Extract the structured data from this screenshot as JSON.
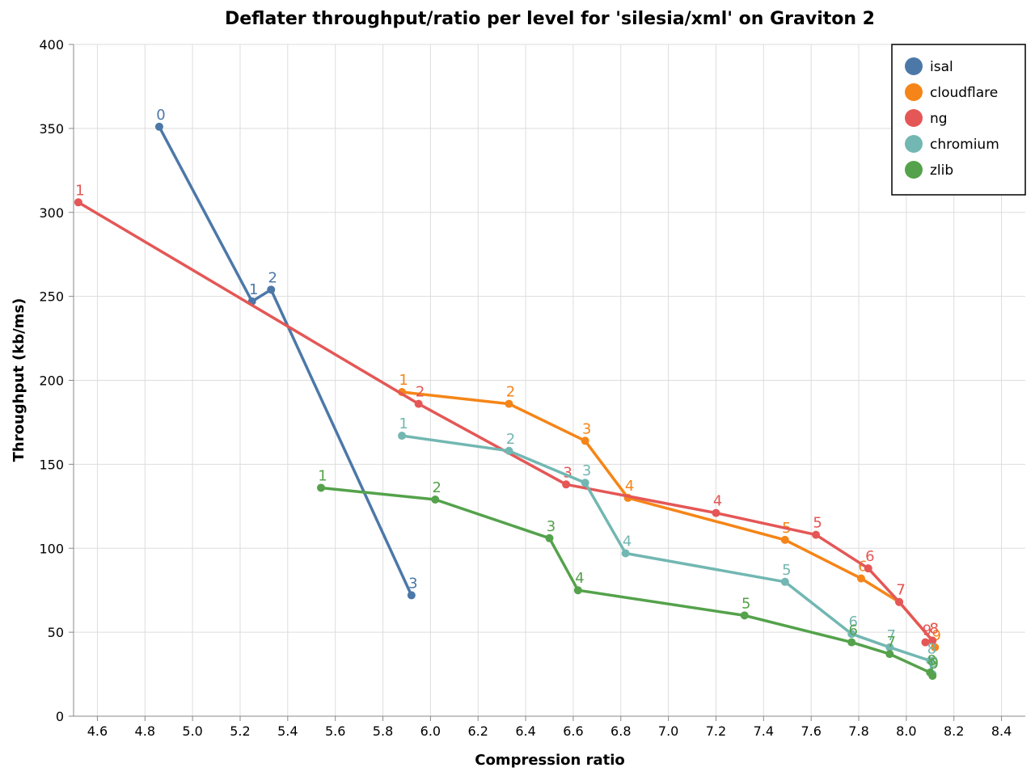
{
  "chart_data": {
    "type": "line",
    "title": "Deflater throughput/ratio per level for 'silesia/xml' on Graviton 2",
    "xlabel": "Compression ratio",
    "ylabel": "Throughput (kb/ms)",
    "xlim": [
      4.5,
      8.5
    ],
    "ylim": [
      0,
      400
    ],
    "x_ticks": [
      "4.6",
      "4.8",
      "5.0",
      "5.2",
      "5.4",
      "5.6",
      "5.8",
      "6.0",
      "6.2",
      "6.4",
      "6.6",
      "6.8",
      "7.0",
      "7.2",
      "7.4",
      "7.6",
      "7.8",
      "8.0",
      "8.2",
      "8.4"
    ],
    "y_ticks": [
      "0",
      "50",
      "100",
      "150",
      "200",
      "250",
      "300",
      "350",
      "400"
    ],
    "grid": true,
    "legend_position": "top-right",
    "series": [
      {
        "name": "isal",
        "color": "#4c78a8",
        "points": [
          {
            "level": "0",
            "x": 4.86,
            "y": 351
          },
          {
            "level": "1",
            "x": 5.25,
            "y": 247
          },
          {
            "level": "2",
            "x": 5.33,
            "y": 254
          },
          {
            "level": "3",
            "x": 5.92,
            "y": 72
          }
        ]
      },
      {
        "name": "cloudflare",
        "color": "#f58518",
        "points": [
          {
            "level": "1",
            "x": 5.88,
            "y": 193
          },
          {
            "level": "2",
            "x": 6.33,
            "y": 186
          },
          {
            "level": "3",
            "x": 6.65,
            "y": 164
          },
          {
            "level": "4",
            "x": 6.83,
            "y": 130
          },
          {
            "level": "5",
            "x": 7.49,
            "y": 105
          },
          {
            "level": "6",
            "x": 7.81,
            "y": 82
          },
          {
            "level": "7",
            "x": 7.97,
            "y": 68
          },
          {
            "level": "8",
            "x": 8.11,
            "y": 45
          },
          {
            "level": "9",
            "x": 8.12,
            "y": 41
          }
        ]
      },
      {
        "name": "ng",
        "color": "#e45756",
        "points": [
          {
            "level": "1",
            "x": 4.52,
            "y": 306
          },
          {
            "level": "2",
            "x": 5.95,
            "y": 186
          },
          {
            "level": "3",
            "x": 6.57,
            "y": 138
          },
          {
            "level": "4",
            "x": 7.2,
            "y": 121
          },
          {
            "level": "5",
            "x": 7.62,
            "y": 108
          },
          {
            "level": "6",
            "x": 7.84,
            "y": 88
          },
          {
            "level": "7",
            "x": 7.97,
            "y": 68
          },
          {
            "level": "8",
            "x": 8.11,
            "y": 45
          },
          {
            "level": "9",
            "x": 8.08,
            "y": 44
          }
        ]
      },
      {
        "name": "chromium",
        "color": "#72b7b2",
        "points": [
          {
            "level": "1",
            "x": 5.88,
            "y": 167
          },
          {
            "level": "2",
            "x": 6.33,
            "y": 158
          },
          {
            "level": "3",
            "x": 6.65,
            "y": 139
          },
          {
            "level": "4",
            "x": 6.82,
            "y": 97
          },
          {
            "level": "5",
            "x": 7.49,
            "y": 80
          },
          {
            "level": "6",
            "x": 7.77,
            "y": 49
          },
          {
            "level": "7",
            "x": 7.93,
            "y": 41
          },
          {
            "level": "8",
            "x": 8.1,
            "y": 33
          },
          {
            "level": "9",
            "x": 8.11,
            "y": 25
          }
        ]
      },
      {
        "name": "zlib",
        "color": "#54a24b",
        "points": [
          {
            "level": "1",
            "x": 5.54,
            "y": 136
          },
          {
            "level": "2",
            "x": 6.02,
            "y": 129
          },
          {
            "level": "3",
            "x": 6.5,
            "y": 106
          },
          {
            "level": "4",
            "x": 6.62,
            "y": 75
          },
          {
            "level": "5",
            "x": 7.32,
            "y": 60
          },
          {
            "level": "6",
            "x": 7.77,
            "y": 44
          },
          {
            "level": "7",
            "x": 7.93,
            "y": 37
          },
          {
            "level": "8",
            "x": 8.1,
            "y": 26
          },
          {
            "level": "9",
            "x": 8.11,
            "y": 24
          }
        ]
      }
    ]
  }
}
